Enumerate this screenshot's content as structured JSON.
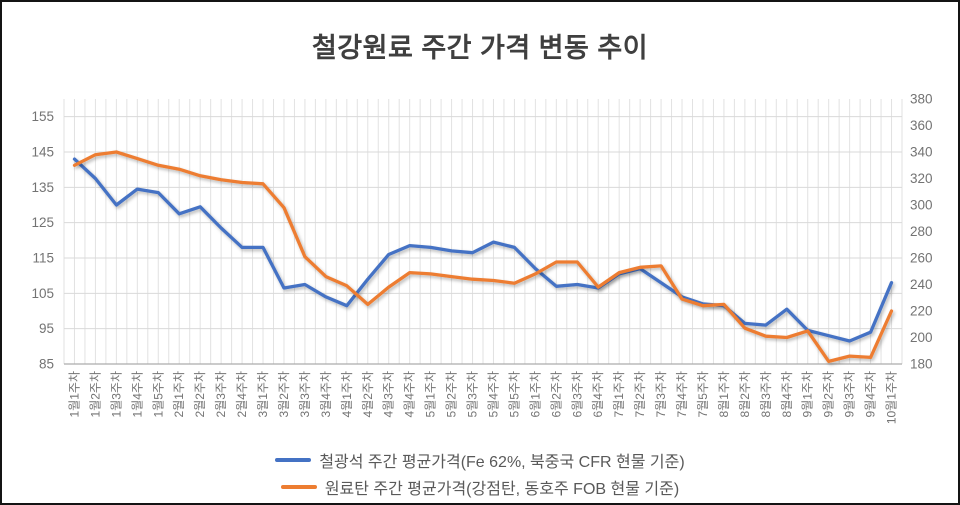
{
  "chart_data": {
    "type": "line",
    "title": "철강원료 주간 가격 변동 추이",
    "categories": [
      "1월1주차",
      "1월2주차",
      "1월3주차",
      "1월4주차",
      "1월5주차",
      "2월1주차",
      "2월2주차",
      "2월3주차",
      "2월4주차",
      "3월1주차",
      "3월2주차",
      "3월3주차",
      "3월4주차",
      "4월1주차",
      "4월2주차",
      "4월3주차",
      "4월4주차",
      "5월1주차",
      "5월2주차",
      "5월3주차",
      "5월4주차",
      "5월5주차",
      "6월1주차",
      "6월2주차",
      "6월3주차",
      "6월4주차",
      "7월1주차",
      "7월2주차",
      "7월3주차",
      "7월4주차",
      "7월5주차",
      "8월1주차",
      "8월2주차",
      "8월3주차",
      "8월4주차",
      "9월1주차",
      "9월2주차",
      "9월3주차",
      "9월4주차",
      "10월1주차"
    ],
    "series": [
      {
        "name": "철광석 주간 평균가격(Fe 62%, 북중국 CFR 현물 기준)",
        "axis": "left",
        "color": "#4472C4",
        "values": [
          143,
          137.5,
          130,
          134.5,
          133.5,
          127.5,
          129.5,
          123.5,
          118,
          118,
          106.5,
          107.5,
          104,
          101.5,
          109,
          116,
          118.5,
          118,
          117,
          116.5,
          119.5,
          118,
          112,
          107,
          107.5,
          106.5,
          110.5,
          112,
          108,
          104,
          102,
          101.5,
          96.5,
          96,
          100.5,
          94.5,
          93,
          91.5,
          94,
          108
        ]
      },
      {
        "name": "원료탄 주간 평균가격(강점탄, 동호주 FOB 현물 기준)",
        "axis": "right",
        "color": "#ED7D31",
        "values": [
          330,
          338,
          340,
          335,
          330,
          327,
          322,
          319,
          317,
          316,
          298,
          261,
          246,
          239,
          225,
          238,
          249,
          248,
          246,
          244,
          243,
          241,
          248,
          257,
          257,
          238,
          249,
          253,
          254,
          229,
          224,
          225,
          207,
          201,
          200,
          205,
          182,
          186,
          185,
          220
        ]
      }
    ],
    "axes": {
      "left": {
        "min": 85,
        "max": 160,
        "tick_labels": [
          85,
          95,
          105,
          115,
          125,
          135,
          145,
          155
        ]
      },
      "right": {
        "min": 180,
        "max": 380,
        "tick_labels": [
          180,
          200,
          220,
          240,
          260,
          280,
          300,
          320,
          340,
          360,
          380
        ]
      }
    },
    "grid": {
      "horizontal": true,
      "vertical": true,
      "vertical_divisions": 80
    },
    "legend_position": "bottom",
    "colors": {
      "axis_text": "#737373",
      "grid_horizontal": "#D9D9D9",
      "grid_vertical": "#E2E2E2",
      "axis_line": "#ACACAC",
      "title": "#3F3F3F",
      "legend_text": "#595959"
    }
  }
}
